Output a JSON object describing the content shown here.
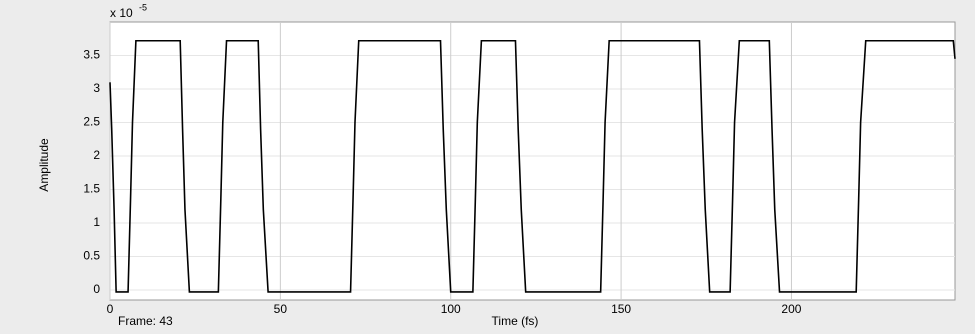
{
  "chart_data": {
    "type": "line",
    "y_label": "Amplitude",
    "x_label": "Time (fs)",
    "frame_label": "Frame: 43",
    "y_multiplier": "x 10",
    "y_multiplier_exp": "-5",
    "x": [
      0,
      0.5,
      1.2,
      1.8,
      5.3,
      6,
      6.6,
      7.6,
      20.6,
      21.3,
      22,
      23.3,
      31.8,
      32.5,
      33.1,
      34.2,
      43.5,
      44.2,
      45,
      46.4,
      70.6,
      71.3,
      71.9,
      73,
      97,
      97.8,
      98.7,
      100,
      106.5,
      107.2,
      107.8,
      109,
      119,
      119.8,
      120.7,
      122,
      144,
      144.7,
      145.3,
      146.5,
      173,
      173.8,
      174.7,
      176,
      182,
      182.7,
      183.3,
      184.7,
      193.5,
      194.3,
      195.1,
      196.5,
      219,
      219.7,
      220.3,
      221.8,
      247.5,
      248
    ],
    "series": [
      {
        "color": "#000000",
        "values": [
          3.1,
          2.4,
          1.2,
          -0.03,
          -0.03,
          1.3,
          2.5,
          3.72,
          3.72,
          2.4,
          1.2,
          -0.03,
          -0.03,
          1.3,
          2.5,
          3.72,
          3.72,
          2.4,
          1.2,
          -0.03,
          -0.03,
          1.3,
          2.5,
          3.72,
          3.72,
          2.4,
          1.2,
          -0.03,
          -0.03,
          1.3,
          2.5,
          3.72,
          3.72,
          2.4,
          1.2,
          -0.03,
          -0.03,
          1.3,
          2.5,
          3.72,
          3.72,
          2.4,
          1.2,
          -0.03,
          -0.03,
          1.3,
          2.5,
          3.72,
          3.72,
          2.4,
          1.2,
          -0.03,
          -0.03,
          1.3,
          2.5,
          3.72,
          3.72,
          3.45
        ]
      }
    ],
    "xlim": [
      0,
      248
    ],
    "ylim": [
      -0.15,
      4
    ],
    "xticks": [
      0,
      50,
      100,
      150,
      200
    ],
    "yticks": [
      0,
      0.5,
      1,
      1.5,
      2,
      2.5,
      3,
      3.5
    ],
    "grid": true
  }
}
